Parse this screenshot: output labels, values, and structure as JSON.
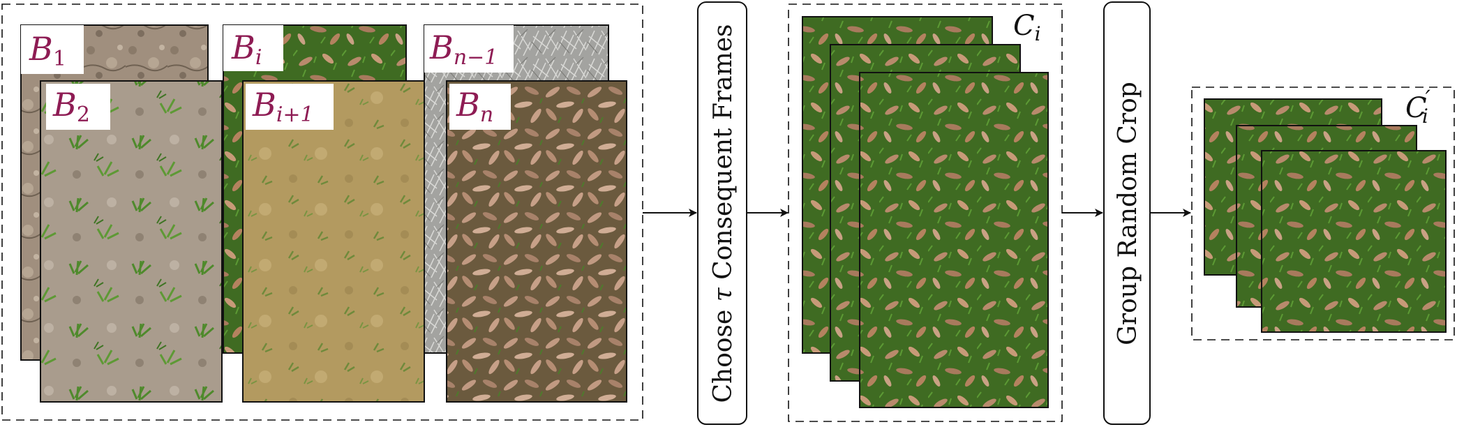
{
  "colors": {
    "label": "#8e1c54",
    "stroke": "#111111",
    "grass": "#3f6b22",
    "leaf": "#b88a6c",
    "soil": "#a08f7e",
    "sand": "#b39a60",
    "frost": "#a3a3a0"
  },
  "source_frames": [
    {
      "name": "frame-b1",
      "base": "B",
      "sub": "1",
      "texture": "soil"
    },
    {
      "name": "frame-b2",
      "base": "B",
      "sub": "2",
      "texture": "weeds"
    },
    {
      "name": "frame-bi",
      "base": "B",
      "sub": "i",
      "texture": "leaves"
    },
    {
      "name": "frame-bi1",
      "base": "B",
      "sub": "i+1",
      "texture": "sand"
    },
    {
      "name": "frame-bn1",
      "base": "B",
      "sub": "n−1",
      "texture": "frost"
    },
    {
      "name": "frame-bn",
      "base": "B",
      "sub": "n",
      "texture": "dryleaves"
    }
  ],
  "step1": {
    "prefix": "Choose ",
    "symbol": "τ",
    "suffix": " Consequent Frames"
  },
  "clip": {
    "base": "C",
    "sub": "i",
    "prime": ""
  },
  "step2": {
    "label": "Group Random Crop"
  },
  "cropped_clip": {
    "base": "C",
    "sub": "i",
    "prime": "′"
  }
}
